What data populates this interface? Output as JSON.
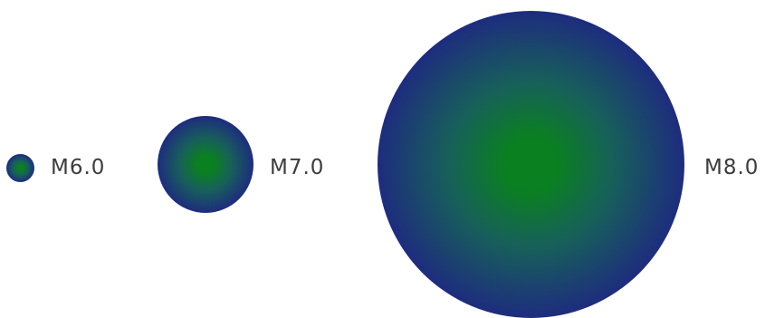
{
  "magnitudes": [
    {
      "label": "M6.0"
    },
    {
      "label": "M7.0"
    },
    {
      "label": "M8.0"
    }
  ],
  "colors": {
    "center": "#0a8020",
    "edge": "#1e2a80",
    "label": "#3c3c3c",
    "background": "#ffffff"
  }
}
